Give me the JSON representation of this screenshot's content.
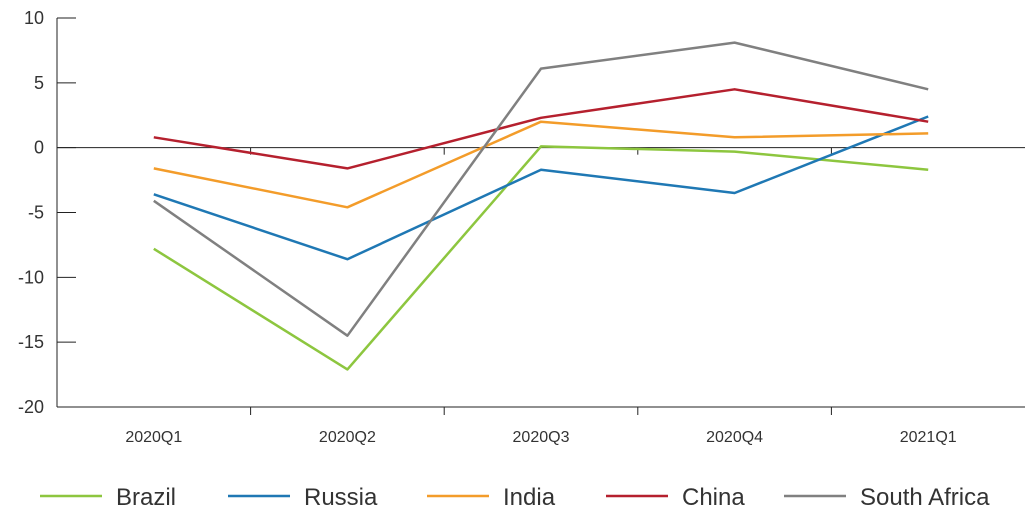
{
  "chart_data": {
    "type": "line",
    "categories": [
      "2020Q1",
      "2020Q2",
      "2020Q3",
      "2020Q4",
      "2021Q1"
    ],
    "ylim": [
      -20,
      10
    ],
    "yticks": [
      "10",
      "5",
      "0",
      "-5",
      "-10",
      "-15",
      "-20"
    ],
    "grid": false,
    "legend_position": "bottom",
    "series": [
      {
        "name": "Brazil",
        "color": "#8dc63f",
        "values": [
          -7.8,
          -17.1,
          0.1,
          -0.3,
          -1.7
        ]
      },
      {
        "name": "Russia",
        "color": "#1f78b4",
        "values": [
          -3.6,
          -8.6,
          -1.7,
          -3.5,
          2.4
        ]
      },
      {
        "name": "India",
        "color": "#f39c2a",
        "values": [
          -1.6,
          -4.6,
          2.0,
          0.8,
          1.1
        ]
      },
      {
        "name": "China",
        "color": "#b5202e",
        "values": [
          0.8,
          -1.6,
          2.3,
          4.5,
          2.0
        ]
      },
      {
        "name": "South Africa",
        "color": "#808080",
        "values": [
          -4.1,
          -14.5,
          6.1,
          8.1,
          4.5
        ]
      }
    ]
  }
}
